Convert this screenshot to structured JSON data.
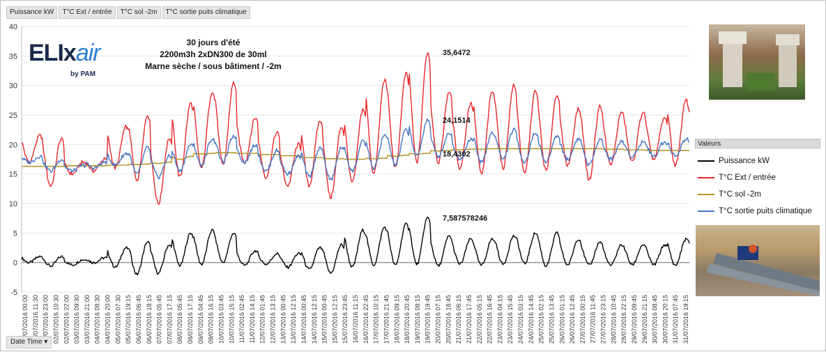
{
  "field_buttons": [
    "Puissance kW",
    "T°C Ext / entrée",
    "T°C sol -2m",
    "T°C sortie puits climatique"
  ],
  "date_button": "Date Time",
  "logo": {
    "text_main": "ELIx",
    "text_air": "air",
    "text_sub": "by PAM"
  },
  "subtitle_lines": [
    "30 jours d'été",
    "2200m3h 2xDN300 de 30ml",
    "Marne sèche / sous bâtiment / -2m"
  ],
  "legend_title": "Valeurs",
  "chart_data": {
    "type": "line",
    "title": "30 jours d'été",
    "ylim": [
      -5,
      40
    ],
    "yticks": [
      -5,
      0,
      5,
      10,
      15,
      20,
      25,
      30,
      35,
      40
    ],
    "x_tick_labels": [
      "01/07/2016 00:00",
      "01/07/2016 11:30",
      "01/07/2016 23:00",
      "02/07/2016 10:30",
      "02/07/2016 22:00",
      "03/07/2016 09:30",
      "03/07/2016 21:00",
      "04/07/2016 08:30",
      "04/07/2016 20:00",
      "05/07/2016 07:30",
      "05/07/2016 19:15",
      "06/07/2016 06:45",
      "06/07/2016 18:15",
      "07/07/2016 05:45",
      "07/07/2016 17:15",
      "08/07/2016 05:45",
      "08/07/2016 17:15",
      "09/07/2016 04:45",
      "09/07/2016 16:15",
      "10/07/2016 03:45",
      "10/07/2016 15:15",
      "11/07/2016 02:45",
      "11/07/2016 14:15",
      "12/07/2016 01:45",
      "12/07/2016 13:15",
      "13/07/2016 00:45",
      "13/07/2016 12:15",
      "14/07/2016 00:45",
      "14/07/2016 12:15",
      "15/07/2016 00:45",
      "15/07/2016 12:15",
      "15/07/2016 23:45",
      "16/07/2016 11:15",
      "16/07/2016 22:45",
      "17/07/2016 10:15",
      "17/07/2016 21:45",
      "18/07/2016 09:15",
      "18/07/2016 20:45",
      "19/07/2016 08:15",
      "19/07/2016 19:45",
      "20/07/2016 07:15",
      "20/07/2016 18:45",
      "21/07/2016 06:15",
      "21/07/2016 17:45",
      "22/07/2016 05:15",
      "22/07/2016 16:45",
      "23/07/2016 04:15",
      "23/07/2016 15:45",
      "24/07/2016 03:15",
      "24/07/2016 14:45",
      "25/07/2016 02:15",
      "25/07/2016 13:45",
      "26/07/2016 01:15",
      "26/07/2016 12:45",
      "27/07/2016 00:15",
      "27/07/2016 11:45",
      "27/07/2016 23:15",
      "28/07/2016 10:45",
      "28/07/2016 22:15",
      "29/07/2016 09:45",
      "29/07/2016 21:15",
      "30/07/2016 08:45",
      "30/07/2016 20:15",
      "31/07/2016 07:45",
      "31/07/2016 19:15"
    ],
    "days": [
      1,
      2,
      3,
      4,
      5,
      6,
      7,
      8,
      9,
      10,
      11,
      12,
      13,
      14,
      15,
      16,
      17,
      18,
      19,
      20,
      21,
      22,
      23,
      24,
      25,
      26,
      27,
      28,
      29,
      30,
      31
    ],
    "series": [
      {
        "name": "Puissance kW",
        "color": "#000000",
        "daily_min": [
          0.0,
          -0.6,
          -0.4,
          0.0,
          -0.8,
          -2.0,
          -1.8,
          -0.5,
          -0.3,
          0.0,
          -0.5,
          -0.3,
          -0.8,
          -1.2,
          -1.8,
          -0.8,
          -0.4,
          -0.5,
          -0.3,
          -0.6,
          -0.3,
          -0.5,
          -0.3,
          -0.2,
          -0.6,
          -0.4,
          -0.5,
          -0.5,
          -0.4,
          -0.4,
          -0.5
        ],
        "daily_max": [
          1.0,
          1.0,
          0.5,
          0.8,
          2.5,
          3.5,
          3.0,
          5.0,
          5.5,
          5.0,
          2.0,
          1.5,
          1.5,
          2.5,
          3.0,
          5.5,
          6.0,
          6.5,
          7.6,
          4.5,
          4.0,
          4.0,
          4.5,
          5.0,
          5.0,
          4.0,
          3.5,
          3.0,
          3.0,
          3.0,
          4.0
        ]
      },
      {
        "name": "T°C Ext / entrée",
        "color": "#e8262a",
        "daily_min": [
          17.0,
          13.0,
          15.0,
          15.5,
          16.0,
          14.0,
          10.0,
          14.5,
          16.0,
          16.5,
          17.0,
          14.5,
          13.0,
          13.0,
          11.0,
          13.5,
          15.0,
          16.0,
          17.0,
          17.0,
          16.0,
          15.0,
          16.0,
          15.0,
          15.5,
          16.5,
          14.0,
          16.5,
          17.0,
          17.5,
          16.5
        ],
        "daily_max": [
          21.5,
          21.0,
          17.0,
          17.5,
          23.0,
          25.0,
          21.0,
          27.0,
          29.0,
          30.5,
          24.5,
          22.0,
          20.0,
          24.0,
          23.0,
          26.0,
          31.0,
          32.0,
          35.6,
          29.0,
          27.0,
          29.0,
          30.0,
          29.0,
          28.5,
          26.0,
          26.5,
          25.5,
          25.5,
          24.5,
          27.5
        ]
      },
      {
        "name": "T°C sol -2m",
        "color": "#b8962a",
        "daily_min": [
          16.3,
          16.3,
          16.4,
          16.4,
          16.5,
          16.6,
          16.8,
          17.5,
          18.4,
          18.6,
          18.5,
          18.3,
          18.1,
          17.8,
          17.6,
          17.5,
          17.6,
          18.0,
          18.4,
          18.9,
          19.1,
          19.2,
          19.3,
          19.3,
          19.3,
          19.3,
          19.3,
          19.2,
          19.1,
          19.0,
          19.0
        ],
        "daily_max": [
          16.3,
          16.3,
          16.4,
          16.4,
          16.5,
          16.7,
          17.0,
          18.0,
          18.5,
          18.6,
          18.5,
          18.3,
          18.1,
          17.8,
          17.6,
          17.5,
          17.7,
          18.2,
          18.5,
          19.0,
          19.2,
          19.3,
          19.3,
          19.3,
          19.3,
          19.3,
          19.3,
          19.2,
          19.1,
          19.0,
          19.0
        ]
      },
      {
        "name": "T°C sortie puits climatique",
        "color": "#4472c4",
        "daily_min": [
          17.0,
          15.5,
          15.5,
          16.0,
          16.5,
          15.0,
          14.5,
          15.5,
          16.5,
          17.0,
          17.0,
          15.5,
          15.0,
          14.5,
          14.0,
          15.5,
          16.0,
          16.5,
          18.0,
          18.0,
          17.5,
          17.0,
          17.5,
          17.0,
          17.0,
          17.5,
          16.5,
          17.5,
          18.0,
          18.0,
          18.0
        ],
        "daily_max": [
          18.0,
          17.5,
          16.5,
          17.0,
          18.5,
          19.5,
          18.0,
          20.0,
          21.0,
          21.5,
          20.0,
          19.0,
          18.0,
          19.5,
          19.5,
          20.5,
          21.5,
          22.5,
          24.2,
          22.0,
          21.0,
          22.0,
          22.5,
          22.0,
          21.5,
          21.0,
          21.0,
          20.5,
          20.5,
          20.5,
          21.0
        ]
      }
    ],
    "annotations": [
      {
        "label": "35,6472",
        "day": 19.35,
        "value": 35.6472,
        "series": "T°C Ext / entrée"
      },
      {
        "label": "24,1514",
        "day": 19.35,
        "value": 24.1514,
        "series": "T°C sortie puits climatique"
      },
      {
        "label": "18,4302",
        "day": 19.35,
        "value": 18.4302,
        "series": "T°C sol -2m"
      },
      {
        "label": "7,587578246",
        "day": 19.35,
        "value": 7.587578246,
        "series": "Puissance kW"
      }
    ]
  }
}
